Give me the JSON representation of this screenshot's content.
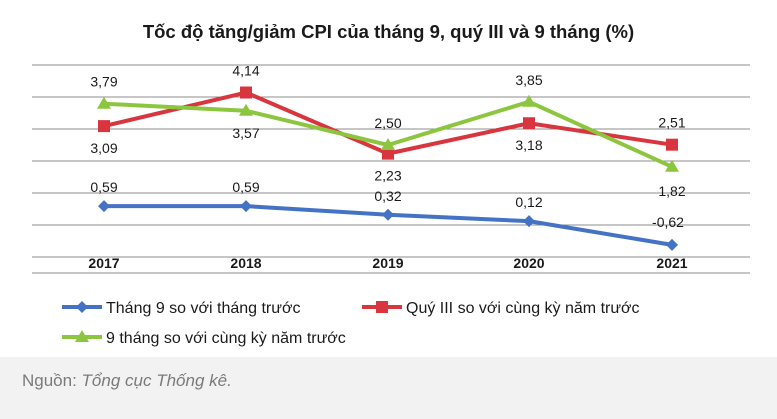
{
  "chart_data": {
    "type": "line",
    "title": "Tốc độ tăng/giảm CPI của tháng 9, quý III và 9 tháng (%)",
    "categories": [
      "2017",
      "2018",
      "2019",
      "2020",
      "2021"
    ],
    "ylim": [
      -1.5,
      5.0
    ],
    "grid": true,
    "legend_position": "bottom",
    "series": [
      {
        "name": "Tháng 9 so với tháng trước",
        "values": [
          0.59,
          0.59,
          0.32,
          0.12,
          -0.62
        ],
        "labels": [
          "0,59",
          "0,59",
          "0,32",
          "0,12",
          "-0,62"
        ],
        "color": "#4472c4",
        "marker": "diamond"
      },
      {
        "name": "Quý III so với cùng kỳ năm trước",
        "values": [
          3.09,
          4.14,
          2.23,
          3.18,
          2.51
        ],
        "labels": [
          "3,09",
          "4,14",
          "2,23",
          "3,18",
          "2,51"
        ],
        "color": "#d9353f",
        "marker": "square"
      },
      {
        "name": "9 tháng so với cùng kỳ năm trước",
        "values": [
          3.79,
          3.57,
          2.5,
          3.85,
          1.82
        ],
        "labels": [
          "3,79",
          "3,57",
          "2,50",
          "3,85",
          "1,82"
        ],
        "color": "#8cc63f",
        "marker": "triangle"
      }
    ]
  },
  "source": {
    "prefix": "Nguồn: ",
    "name": "Tổng cục Thống kê."
  }
}
